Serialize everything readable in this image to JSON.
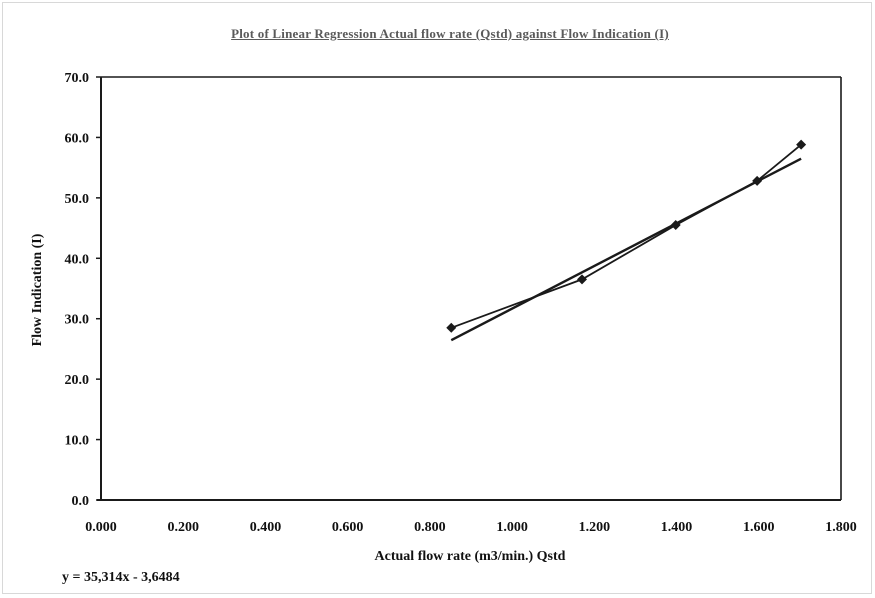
{
  "chart_data": {
    "type": "scatter",
    "title": "Plot of Linear Regression Actual flow rate (Qstd) against Flow Indication (I)",
    "xlabel": "Actual flow rate (m3/min.) Qstd",
    "ylabel": "Flow Indication (I)",
    "xlim": [
      0,
      1.8
    ],
    "ylim": [
      0,
      70
    ],
    "x_ticks": [
      "0.000",
      "0.200",
      "0.400",
      "0.600",
      "0.800",
      "1.000",
      "1.200",
      "1.400",
      "1.600",
      "1.800"
    ],
    "y_ticks": [
      "0.0",
      "10.0",
      "20.0",
      "30.0",
      "40.0",
      "50.0",
      "60.0",
      "70.0"
    ],
    "grid": false,
    "series": [
      {
        "marker": "diamond",
        "x": [
          0.852,
          1.17,
          1.398,
          1.596,
          1.703
        ],
        "y": [
          28.5,
          36.5,
          45.5,
          52.8,
          58.8
        ]
      }
    ],
    "trendline": {
      "slope": 35.314,
      "intercept": -3.6484,
      "x_range": [
        0.852,
        1.703
      ]
    },
    "equation_text": "y = 35,314x - 3,6484",
    "color": "#1a1a1a"
  }
}
